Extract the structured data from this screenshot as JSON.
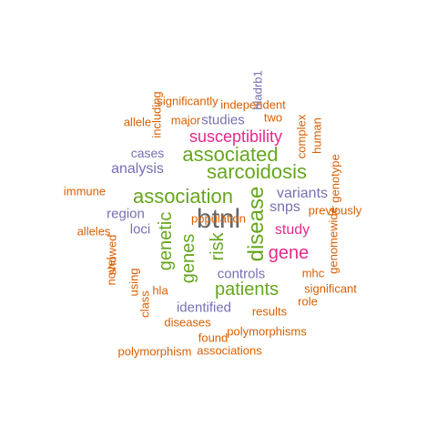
{
  "palette": {
    "orange": "#d95f02",
    "purple": "#7570b3",
    "magenta": "#e7298a",
    "green": "#66a61e",
    "gray": "#666666"
  },
  "words": [
    {
      "text": "btnl",
      "color": "gray",
      "vertical": false
    },
    {
      "text": "disease",
      "color": "green",
      "vertical": true
    },
    {
      "text": "association",
      "color": "green",
      "vertical": false
    },
    {
      "text": "sarcoidosis",
      "color": "green",
      "vertical": false
    },
    {
      "text": "associated",
      "color": "green",
      "vertical": false
    },
    {
      "text": "patients",
      "color": "green",
      "vertical": false
    },
    {
      "text": "genes",
      "color": "green",
      "vertical": true
    },
    {
      "text": "genetic",
      "color": "green",
      "vertical": true
    },
    {
      "text": "risk",
      "color": "green",
      "vertical": true
    },
    {
      "text": "gene",
      "color": "magenta",
      "vertical": false
    },
    {
      "text": "susceptibility",
      "color": "magenta",
      "vertical": false
    },
    {
      "text": "study",
      "color": "magenta",
      "vertical": false
    },
    {
      "text": "analysis",
      "color": "purple",
      "vertical": false
    },
    {
      "text": "variants",
      "color": "purple",
      "vertical": false
    },
    {
      "text": "snps",
      "color": "purple",
      "vertical": false
    },
    {
      "text": "region",
      "color": "purple",
      "vertical": false
    },
    {
      "text": "loci",
      "color": "purple",
      "vertical": false
    },
    {
      "text": "identified",
      "color": "purple",
      "vertical": false
    },
    {
      "text": "controls",
      "color": "purple",
      "vertical": false
    },
    {
      "text": "studies",
      "color": "purple",
      "vertical": false
    },
    {
      "text": "cases",
      "color": "purple",
      "vertical": false
    },
    {
      "text": "hladrb1",
      "color": "purple",
      "vertical": true
    },
    {
      "text": "independent",
      "color": "orange",
      "vertical": false
    },
    {
      "text": "significantly",
      "color": "orange",
      "vertical": false
    },
    {
      "text": "major",
      "color": "orange",
      "vertical": false
    },
    {
      "text": "two",
      "color": "orange",
      "vertical": false
    },
    {
      "text": "allele",
      "color": "orange",
      "vertical": false
    },
    {
      "text": "including",
      "color": "orange",
      "vertical": true
    },
    {
      "text": "complex",
      "color": "orange",
      "vertical": true
    },
    {
      "text": "human",
      "color": "orange",
      "vertical": true
    },
    {
      "text": "genotype",
      "color": "orange",
      "vertical": true
    },
    {
      "text": "immune",
      "color": "orange",
      "vertical": false
    },
    {
      "text": "previously",
      "color": "orange",
      "vertical": false
    },
    {
      "text": "alleles",
      "color": "orange",
      "vertical": false
    },
    {
      "text": "showed",
      "color": "orange",
      "vertical": true
    },
    {
      "text": "novel",
      "color": "orange",
      "vertical": true
    },
    {
      "text": "genomewide",
      "color": "orange",
      "vertical": true
    },
    {
      "text": "using",
      "color": "orange",
      "vertical": true
    },
    {
      "text": "hla",
      "color": "orange",
      "vertical": false
    },
    {
      "text": "mhc",
      "color": "orange",
      "vertical": false
    },
    {
      "text": "significant",
      "color": "orange",
      "vertical": false
    },
    {
      "text": "role",
      "color": "orange",
      "vertical": false
    },
    {
      "text": "class",
      "color": "orange",
      "vertical": true
    },
    {
      "text": "results",
      "color": "orange",
      "vertical": false
    },
    {
      "text": "diseases",
      "color": "orange",
      "vertical": false
    },
    {
      "text": "polymorphisms",
      "color": "orange",
      "vertical": false
    },
    {
      "text": "found",
      "color": "orange",
      "vertical": false
    },
    {
      "text": "polymorphism",
      "color": "orange",
      "vertical": false
    },
    {
      "text": "associations",
      "color": "orange",
      "vertical": false
    },
    {
      "text": "population",
      "color": "orange",
      "vertical": false
    }
  ]
}
